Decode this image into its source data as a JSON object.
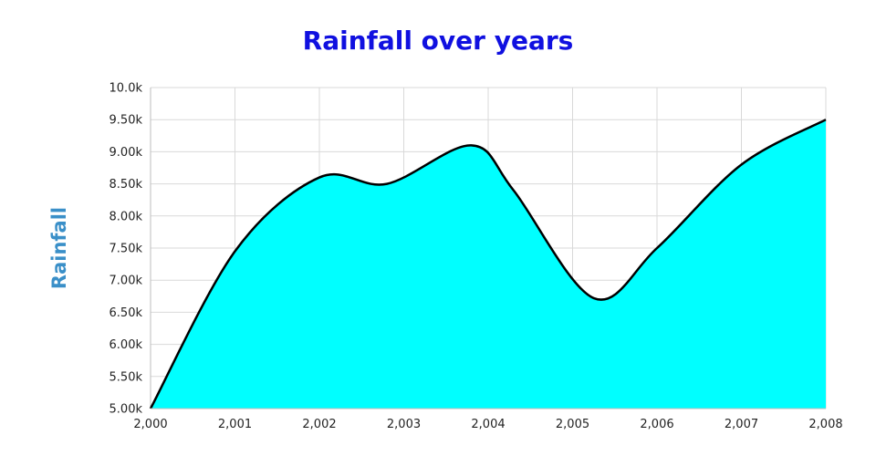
{
  "chart_data": {
    "type": "area",
    "title": "Rainfall over years",
    "xlabel": "",
    "ylabel": "Rainfall",
    "x_ticks": [
      "2,000",
      "2,001",
      "2,002",
      "2,003",
      "2,004",
      "2,005",
      "2,006",
      "2,007",
      "2,008"
    ],
    "y_ticks": [
      "5.00k",
      "5.50k",
      "6.00k",
      "6.50k",
      "7.00k",
      "7.50k",
      "8.00k",
      "8.50k",
      "9.00k",
      "9.50k",
      "10.0k"
    ],
    "xlim": [
      2000,
      2008
    ],
    "ylim": [
      5000,
      10000
    ],
    "grid": true,
    "series": [
      {
        "x": [
          2000,
          2001,
          2002,
          2002.8,
          2003.8,
          2004.3,
          2005.25,
          2006,
          2007,
          2008
        ],
        "values": [
          5000,
          7450,
          8600,
          8500,
          9100,
          8400,
          6720,
          7500,
          8800,
          9500
        ]
      }
    ],
    "colors": {
      "fill": "#00ffff",
      "line": "#000000",
      "title": "#1010e0",
      "ylabel": "#3a8fc8"
    }
  }
}
